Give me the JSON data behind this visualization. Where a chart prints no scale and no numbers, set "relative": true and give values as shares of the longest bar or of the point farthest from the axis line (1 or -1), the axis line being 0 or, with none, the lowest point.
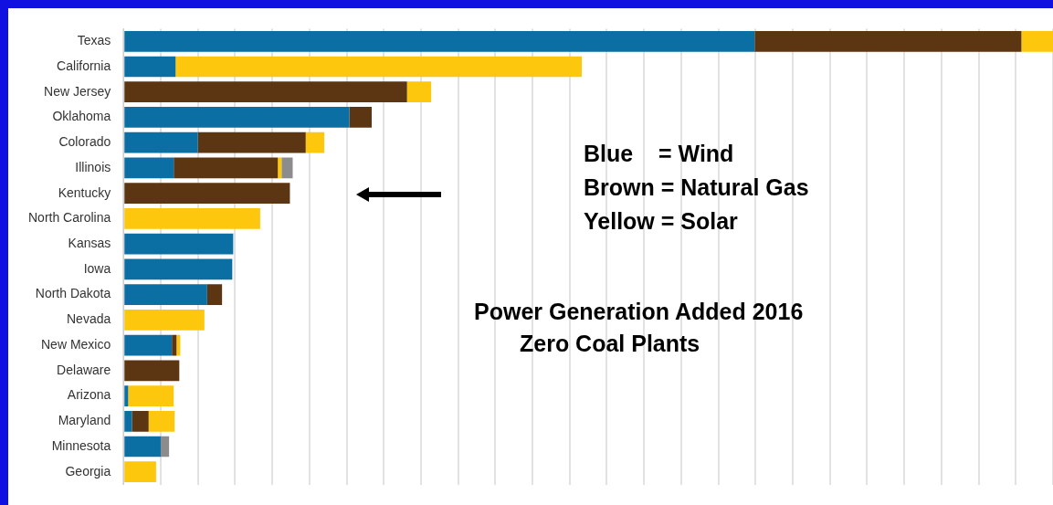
{
  "chart_data": {
    "type": "bar",
    "orientation": "horizontal",
    "stacked": true,
    "relative": true,
    "grid": "x",
    "legend": false,
    "categories": [
      "Texas",
      "California",
      "New Jersey",
      "Oklahoma",
      "Colorado",
      "Illinois",
      "Kentucky",
      "North Carolina",
      "Kansas",
      "Iowa",
      "North Dakota",
      "Nevada",
      "New Mexico",
      "Delaware",
      "Arizona",
      "Maryland",
      "Minnesota",
      "Georgia"
    ],
    "series": [
      {
        "color": "#0b6fa4",
        "values": [
          0.679,
          0.056,
          0,
          0.243,
          0.08,
          0.054,
          0,
          0,
          0.118,
          0.117,
          0.09,
          0,
          0.052,
          0,
          0.005,
          0.009,
          0.04,
          0
        ]
      },
      {
        "color": "#5c3613",
        "values": [
          0.287,
          0,
          0.305,
          0.024,
          0.116,
          0.112,
          0.179,
          0,
          0,
          0,
          0.016,
          0,
          0.005,
          0.06,
          0,
          0.018,
          0,
          0
        ]
      },
      {
        "color": "#fcc70c",
        "values": [
          0.034,
          0.437,
          0.026,
          0,
          0.02,
          0.004,
          0,
          0.147,
          0,
          0,
          0,
          0.087,
          0.004,
          0,
          0.049,
          0.028,
          0,
          0.035
        ]
      },
      {
        "color": "#8c8c8c",
        "values": [
          0,
          0,
          0,
          0,
          0,
          0.012,
          0,
          0,
          0,
          0,
          0,
          0,
          0,
          0,
          0,
          0,
          0.009,
          0
        ]
      }
    ],
    "annotations": [
      "Blue    = Wind",
      "Brown = Natural Gas",
      "Yellow = Solar",
      "Power Generation Added 2016",
      "Zero Coal Plants"
    ]
  }
}
